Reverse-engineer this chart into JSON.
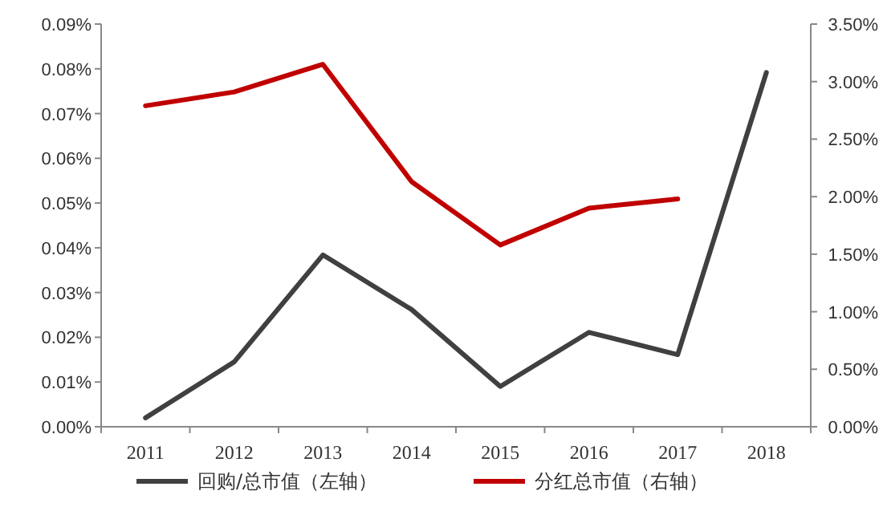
{
  "chart_data": {
    "type": "line",
    "categories": [
      "2011",
      "2012",
      "2013",
      "2014",
      "2015",
      "2016",
      "2017",
      "2018"
    ],
    "series": [
      {
        "name": "回购/总市值（左轴）",
        "color": "#404040",
        "values": [
          0.002,
          0.0145,
          0.0384,
          0.0262,
          0.009,
          0.0211,
          0.0161,
          0.0792
        ]
      },
      {
        "name": "分红总市值（右轴）",
        "color": "#c00000",
        "axis": "y2",
        "values": [
          2.79,
          2.91,
          3.15,
          2.13,
          1.58,
          1.9,
          1.98,
          null
        ]
      }
    ],
    "ylim": [
      0,
      0.09
    ],
    "yticks": [
      {
        "value": 0,
        "label": "0.00%"
      },
      {
        "value": 0.01,
        "label": "0.01%"
      },
      {
        "value": 0.02,
        "label": "0.02%"
      },
      {
        "value": 0.03,
        "label": "0.03%"
      },
      {
        "value": 0.04,
        "label": "0.04%"
      },
      {
        "value": 0.05,
        "label": "0.05%"
      },
      {
        "value": 0.06,
        "label": "0.06%"
      },
      {
        "value": 0.07,
        "label": "0.07%"
      },
      {
        "value": 0.08,
        "label": "0.08%"
      },
      {
        "value": 0.09,
        "label": "0.09%"
      }
    ],
    "y2lim": [
      0,
      3.5
    ],
    "y2ticks": [
      {
        "value": 0,
        "label": "0.00%"
      },
      {
        "value": 0.5,
        "label": "0.50%"
      },
      {
        "value": 1,
        "label": "1.00%"
      },
      {
        "value": 1.5,
        "label": "1.50%"
      },
      {
        "value": 2,
        "label": "2.00%"
      },
      {
        "value": 2.5,
        "label": "2.50%"
      },
      {
        "value": 3,
        "label": "3.00%"
      },
      {
        "value": 3.5,
        "label": "3.50%"
      }
    ],
    "legend": "bottom"
  }
}
